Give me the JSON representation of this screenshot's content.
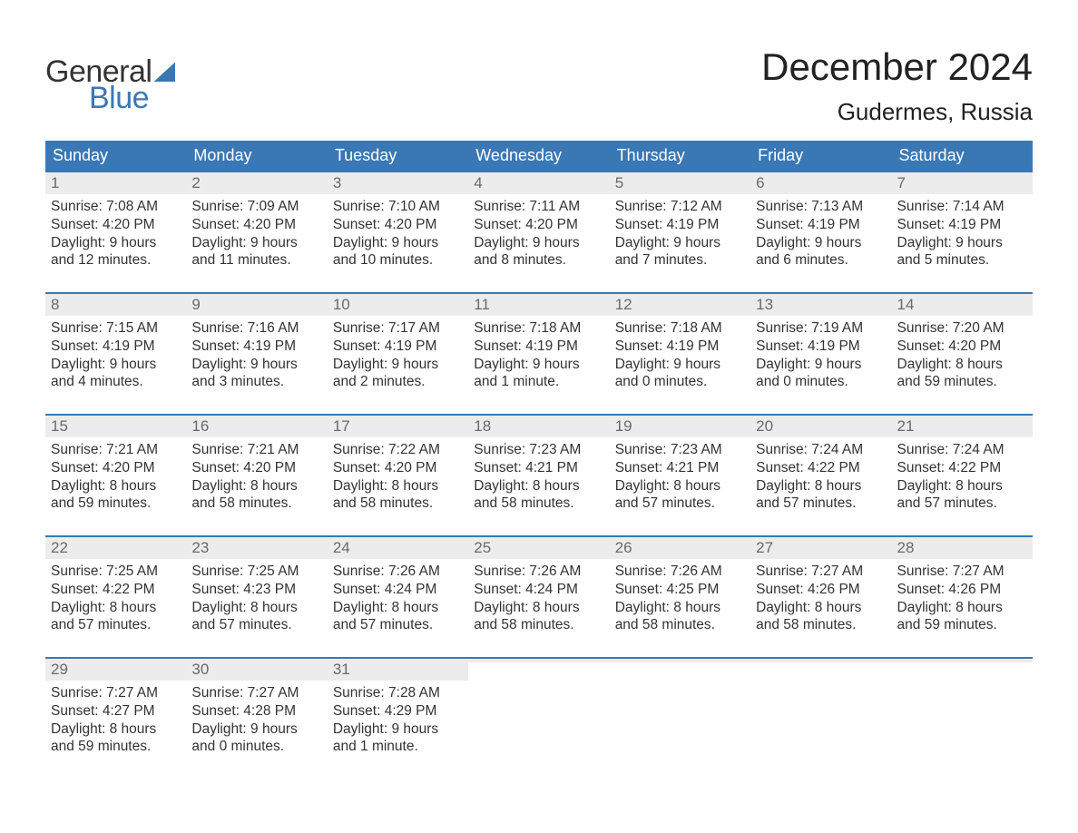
{
  "brand": {
    "general": "General",
    "blue": "Blue"
  },
  "title": "December 2024",
  "location": "Gudermes, Russia",
  "colors": {
    "brand_blue": "#3a78b5",
    "header_bg": "#3a78b5",
    "daynum_bg": "#ececec",
    "text": "#333333",
    "white": "#ffffff"
  },
  "weekdays": [
    "Sunday",
    "Monday",
    "Tuesday",
    "Wednesday",
    "Thursday",
    "Friday",
    "Saturday"
  ],
  "weeks": [
    [
      {
        "n": "1",
        "sunrise": "Sunrise: 7:08 AM",
        "sunset": "Sunset: 4:20 PM",
        "d1": "Daylight: 9 hours",
        "d2": "and 12 minutes."
      },
      {
        "n": "2",
        "sunrise": "Sunrise: 7:09 AM",
        "sunset": "Sunset: 4:20 PM",
        "d1": "Daylight: 9 hours",
        "d2": "and 11 minutes."
      },
      {
        "n": "3",
        "sunrise": "Sunrise: 7:10 AM",
        "sunset": "Sunset: 4:20 PM",
        "d1": "Daylight: 9 hours",
        "d2": "and 10 minutes."
      },
      {
        "n": "4",
        "sunrise": "Sunrise: 7:11 AM",
        "sunset": "Sunset: 4:20 PM",
        "d1": "Daylight: 9 hours",
        "d2": "and 8 minutes."
      },
      {
        "n": "5",
        "sunrise": "Sunrise: 7:12 AM",
        "sunset": "Sunset: 4:19 PM",
        "d1": "Daylight: 9 hours",
        "d2": "and 7 minutes."
      },
      {
        "n": "6",
        "sunrise": "Sunrise: 7:13 AM",
        "sunset": "Sunset: 4:19 PM",
        "d1": "Daylight: 9 hours",
        "d2": "and 6 minutes."
      },
      {
        "n": "7",
        "sunrise": "Sunrise: 7:14 AM",
        "sunset": "Sunset: 4:19 PM",
        "d1": "Daylight: 9 hours",
        "d2": "and 5 minutes."
      }
    ],
    [
      {
        "n": "8",
        "sunrise": "Sunrise: 7:15 AM",
        "sunset": "Sunset: 4:19 PM",
        "d1": "Daylight: 9 hours",
        "d2": "and 4 minutes."
      },
      {
        "n": "9",
        "sunrise": "Sunrise: 7:16 AM",
        "sunset": "Sunset: 4:19 PM",
        "d1": "Daylight: 9 hours",
        "d2": "and 3 minutes."
      },
      {
        "n": "10",
        "sunrise": "Sunrise: 7:17 AM",
        "sunset": "Sunset: 4:19 PM",
        "d1": "Daylight: 9 hours",
        "d2": "and 2 minutes."
      },
      {
        "n": "11",
        "sunrise": "Sunrise: 7:18 AM",
        "sunset": "Sunset: 4:19 PM",
        "d1": "Daylight: 9 hours",
        "d2": "and 1 minute."
      },
      {
        "n": "12",
        "sunrise": "Sunrise: 7:18 AM",
        "sunset": "Sunset: 4:19 PM",
        "d1": "Daylight: 9 hours",
        "d2": "and 0 minutes."
      },
      {
        "n": "13",
        "sunrise": "Sunrise: 7:19 AM",
        "sunset": "Sunset: 4:19 PM",
        "d1": "Daylight: 9 hours",
        "d2": "and 0 minutes."
      },
      {
        "n": "14",
        "sunrise": "Sunrise: 7:20 AM",
        "sunset": "Sunset: 4:20 PM",
        "d1": "Daylight: 8 hours",
        "d2": "and 59 minutes."
      }
    ],
    [
      {
        "n": "15",
        "sunrise": "Sunrise: 7:21 AM",
        "sunset": "Sunset: 4:20 PM",
        "d1": "Daylight: 8 hours",
        "d2": "and 59 minutes."
      },
      {
        "n": "16",
        "sunrise": "Sunrise: 7:21 AM",
        "sunset": "Sunset: 4:20 PM",
        "d1": "Daylight: 8 hours",
        "d2": "and 58 minutes."
      },
      {
        "n": "17",
        "sunrise": "Sunrise: 7:22 AM",
        "sunset": "Sunset: 4:20 PM",
        "d1": "Daylight: 8 hours",
        "d2": "and 58 minutes."
      },
      {
        "n": "18",
        "sunrise": "Sunrise: 7:23 AM",
        "sunset": "Sunset: 4:21 PM",
        "d1": "Daylight: 8 hours",
        "d2": "and 58 minutes."
      },
      {
        "n": "19",
        "sunrise": "Sunrise: 7:23 AM",
        "sunset": "Sunset: 4:21 PM",
        "d1": "Daylight: 8 hours",
        "d2": "and 57 minutes."
      },
      {
        "n": "20",
        "sunrise": "Sunrise: 7:24 AM",
        "sunset": "Sunset: 4:22 PM",
        "d1": "Daylight: 8 hours",
        "d2": "and 57 minutes."
      },
      {
        "n": "21",
        "sunrise": "Sunrise: 7:24 AM",
        "sunset": "Sunset: 4:22 PM",
        "d1": "Daylight: 8 hours",
        "d2": "and 57 minutes."
      }
    ],
    [
      {
        "n": "22",
        "sunrise": "Sunrise: 7:25 AM",
        "sunset": "Sunset: 4:22 PM",
        "d1": "Daylight: 8 hours",
        "d2": "and 57 minutes."
      },
      {
        "n": "23",
        "sunrise": "Sunrise: 7:25 AM",
        "sunset": "Sunset: 4:23 PM",
        "d1": "Daylight: 8 hours",
        "d2": "and 57 minutes."
      },
      {
        "n": "24",
        "sunrise": "Sunrise: 7:26 AM",
        "sunset": "Sunset: 4:24 PM",
        "d1": "Daylight: 8 hours",
        "d2": "and 57 minutes."
      },
      {
        "n": "25",
        "sunrise": "Sunrise: 7:26 AM",
        "sunset": "Sunset: 4:24 PM",
        "d1": "Daylight: 8 hours",
        "d2": "and 58 minutes."
      },
      {
        "n": "26",
        "sunrise": "Sunrise: 7:26 AM",
        "sunset": "Sunset: 4:25 PM",
        "d1": "Daylight: 8 hours",
        "d2": "and 58 minutes."
      },
      {
        "n": "27",
        "sunrise": "Sunrise: 7:27 AM",
        "sunset": "Sunset: 4:26 PM",
        "d1": "Daylight: 8 hours",
        "d2": "and 58 minutes."
      },
      {
        "n": "28",
        "sunrise": "Sunrise: 7:27 AM",
        "sunset": "Sunset: 4:26 PM",
        "d1": "Daylight: 8 hours",
        "d2": "and 59 minutes."
      }
    ],
    [
      {
        "n": "29",
        "sunrise": "Sunrise: 7:27 AM",
        "sunset": "Sunset: 4:27 PM",
        "d1": "Daylight: 8 hours",
        "d2": "and 59 minutes."
      },
      {
        "n": "30",
        "sunrise": "Sunrise: 7:27 AM",
        "sunset": "Sunset: 4:28 PM",
        "d1": "Daylight: 9 hours",
        "d2": "and 0 minutes."
      },
      {
        "n": "31",
        "sunrise": "Sunrise: 7:28 AM",
        "sunset": "Sunset: 4:29 PM",
        "d1": "Daylight: 9 hours",
        "d2": "and 1 minute."
      },
      {
        "empty": true
      },
      {
        "empty": true
      },
      {
        "empty": true
      },
      {
        "empty": true
      }
    ]
  ]
}
